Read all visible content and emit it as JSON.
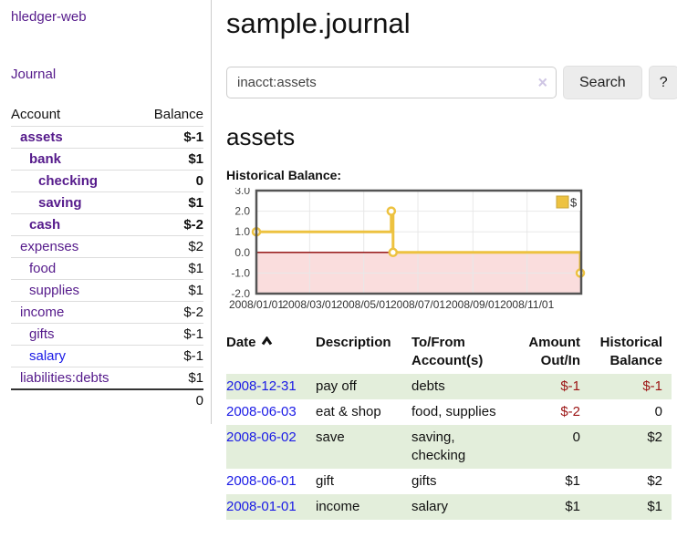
{
  "colors": {
    "link_purple": "#551a8b",
    "link_blue": "#1a1ae6",
    "negative_strong": "#9b1313",
    "negative_soft": "#c17878",
    "row_green": "#e3eedb",
    "series_gold": "#edc240",
    "chart_negative_fill": "#fadddd",
    "chart_zero_line": "#8b0000",
    "chart_border": "#545454",
    "grid_line": "#e8e8e8"
  },
  "sidebar": {
    "brand": "hledger-web",
    "nav": {
      "journal_label": "Journal"
    },
    "accounts_table": {
      "headers": [
        "Account",
        "Balance"
      ],
      "rows": [
        {
          "name": "assets",
          "indent": 1,
          "bold": true,
          "balance": "$-1",
          "balance_class": "neg-strong b"
        },
        {
          "name": "bank",
          "indent": 2,
          "bold": true,
          "balance": "$1",
          "balance_class": "b"
        },
        {
          "name": "checking",
          "indent": 3,
          "bold": true,
          "balance": "0",
          "balance_class": "b"
        },
        {
          "name": "saving",
          "indent": 3,
          "bold": true,
          "balance": "$1",
          "balance_class": "b"
        },
        {
          "name": "cash",
          "indent": 2,
          "bold": true,
          "balance": "$-2",
          "balance_class": "neg-strong b"
        },
        {
          "name": "expenses",
          "indent": 1,
          "bold": false,
          "balance": "$2",
          "balance_class": ""
        },
        {
          "name": "food",
          "indent": 2,
          "bold": false,
          "balance": "$1",
          "balance_class": ""
        },
        {
          "name": "supplies",
          "indent": 2,
          "bold": false,
          "balance": "$1",
          "balance_class": ""
        },
        {
          "name": "income",
          "indent": 1,
          "bold": false,
          "balance": "$-2",
          "balance_class": "neg-soft"
        },
        {
          "name": "gifts",
          "indent": 2,
          "bold": false,
          "balance": "$-1",
          "balance_class": "neg-soft"
        },
        {
          "name": "salary",
          "indent": 2,
          "bold": false,
          "link_color": "blue",
          "balance": "$-1",
          "balance_class": "neg-soft"
        },
        {
          "name": "liabilities:debts",
          "indent": 1,
          "bold": false,
          "balance": "$1",
          "balance_class": ""
        }
      ],
      "total": "0"
    }
  },
  "main": {
    "title": "sample.journal",
    "search": {
      "value": "inacct:assets",
      "clear_icon": "×",
      "search_button": "Search",
      "help_button": "?"
    },
    "account_heading": "assets",
    "chart_label": "Historical Balance:",
    "register_table": {
      "headers": [
        {
          "text": "Date",
          "sort": "asc"
        },
        {
          "text": "Description"
        },
        {
          "text": "To/From\nAccount(s)"
        },
        {
          "text": "Amount\nOut/In",
          "align": "right"
        },
        {
          "text": "Historical\nBalance",
          "align": "right"
        }
      ],
      "rows": [
        {
          "date": "2008-12-31",
          "description": "pay off",
          "accounts": "debts",
          "amount": "$-1",
          "amount_neg": true,
          "balance": "$-1",
          "balance_neg": true,
          "shade": true
        },
        {
          "date": "2008-06-03",
          "description": "eat & shop",
          "accounts": "food, supplies",
          "amount": "$-2",
          "amount_neg": true,
          "balance": "0",
          "balance_neg": false,
          "shade": false
        },
        {
          "date": "2008-06-02",
          "description": "save",
          "accounts": "saving, checking",
          "amount": "0",
          "amount_neg": false,
          "balance": "$2",
          "balance_neg": false,
          "shade": true
        },
        {
          "date": "2008-06-01",
          "description": "gift",
          "accounts": "gifts",
          "amount": "$1",
          "amount_neg": false,
          "balance": "$2",
          "balance_neg": false,
          "shade": false
        },
        {
          "date": "2008-01-01",
          "description": "income",
          "accounts": "salary",
          "amount": "$1",
          "amount_neg": false,
          "balance": "$1",
          "balance_neg": false,
          "shade": true
        }
      ]
    }
  },
  "chart_data": {
    "type": "line",
    "subtype": "step",
    "title": "Historical Balance:",
    "x_range": [
      "2008-01-01",
      "2009-01-01"
    ],
    "ylim": [
      -2,
      3
    ],
    "y_ticks": [
      3,
      2,
      1,
      0,
      -1,
      -2
    ],
    "y_tick_labels": [
      "3.0",
      "2.0",
      "1.0",
      "0.0",
      "-1.0",
      "-2.0"
    ],
    "x_ticks": [
      {
        "date": "2008-01-01",
        "label": "2008/01/01"
      },
      {
        "date": "2008-03-01",
        "label": "2008/03/01"
      },
      {
        "date": "2008-05-01",
        "label": "2008/05/01"
      },
      {
        "date": "2008-07-01",
        "label": "2008/07/01"
      },
      {
        "date": "2008-09-01",
        "label": "2008/09/01"
      },
      {
        "date": "2008-11-01",
        "label": "2008/11/01"
      }
    ],
    "series": [
      {
        "name": "$",
        "color": "#edc240",
        "points": [
          {
            "date": "2008-01-01",
            "value": 1
          },
          {
            "date": "2008-06-01",
            "value": 2
          },
          {
            "date": "2008-06-03",
            "value": 0
          },
          {
            "date": "2008-12-31",
            "value": -1
          }
        ]
      }
    ],
    "legend": {
      "position": "top-right",
      "entries": [
        {
          "label": "$",
          "color": "#edc240"
        }
      ]
    },
    "grid": true,
    "negative_region_color": "#fadddd",
    "zero_line_color": "#8b0000"
  }
}
